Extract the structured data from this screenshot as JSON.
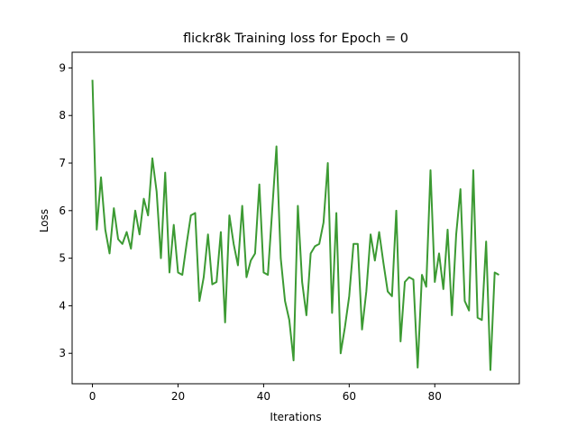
{
  "chart_data": {
    "type": "line",
    "title": "flickr8k Training loss for Epoch = 0",
    "x_label": "Iterations",
    "y_label": "Loss",
    "x": [
      0,
      1,
      2,
      3,
      4,
      5,
      6,
      7,
      8,
      9,
      10,
      11,
      12,
      13,
      14,
      15,
      16,
      17,
      18,
      19,
      20,
      21,
      22,
      23,
      24,
      25,
      26,
      27,
      28,
      29,
      30,
      31,
      32,
      33,
      34,
      35,
      36,
      37,
      38,
      39,
      40,
      41,
      42,
      43,
      44,
      45,
      46,
      47,
      48,
      49,
      50,
      51,
      52,
      53,
      54,
      55,
      56,
      57,
      58,
      59,
      60,
      61,
      62,
      63,
      64,
      65,
      66,
      67,
      68,
      69,
      70,
      71,
      72,
      73,
      74,
      75,
      76,
      77,
      78,
      79,
      80,
      81,
      82,
      83,
      84,
      85,
      86,
      87,
      88,
      89,
      90,
      91,
      92,
      93,
      94,
      95
    ],
    "series": [
      {
        "name": "loss",
        "color": "#3c9a33",
        "values": [
          8.75,
          5.6,
          6.7,
          5.6,
          5.1,
          6.05,
          5.4,
          5.3,
          5.55,
          5.2,
          6.0,
          5.5,
          6.25,
          5.9,
          7.1,
          6.4,
          5.0,
          6.8,
          4.7,
          5.7,
          4.7,
          4.65,
          5.3,
          5.9,
          5.95,
          4.1,
          4.6,
          5.5,
          4.45,
          4.5,
          5.55,
          3.65,
          5.9,
          5.3,
          4.85,
          6.1,
          4.6,
          4.95,
          5.1,
          6.55,
          4.7,
          4.65,
          6.0,
          7.35,
          5.0,
          4.1,
          3.7,
          2.85,
          6.1,
          4.5,
          3.8,
          5.1,
          5.25,
          5.3,
          5.75,
          7.0,
          3.85,
          5.95,
          3.0,
          3.55,
          4.2,
          5.3,
          5.3,
          3.5,
          4.3,
          5.5,
          4.95,
          5.55,
          4.9,
          4.3,
          4.2,
          6.0,
          3.25,
          4.5,
          4.6,
          4.55,
          2.7,
          4.65,
          4.4,
          6.85,
          4.5,
          5.1,
          4.35,
          5.6,
          3.8,
          5.5,
          6.45,
          4.1,
          3.9,
          6.85,
          3.75,
          3.7,
          5.35,
          2.65,
          4.7,
          4.65
        ]
      }
    ],
    "xlim": [
      -4.75,
      99.75
    ],
    "xticks": [
      0,
      20,
      40,
      60,
      80
    ],
    "ylim": [
      2.36,
      9.33
    ],
    "yticks": [
      3,
      4,
      5,
      6,
      7,
      8,
      9
    ]
  }
}
